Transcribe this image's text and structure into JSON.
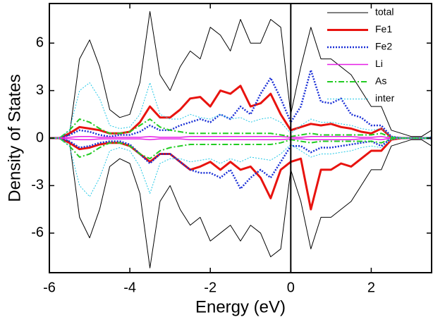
{
  "chart_data": {
    "type": "line",
    "xlabel": "Energy (eV)",
    "ylabel": "Density of States",
    "xlim": [
      -6,
      3.5
    ],
    "ylim": [
      -8.5,
      8.5
    ],
    "xticks": [
      -6,
      -4,
      -2,
      0,
      2
    ],
    "yticks": [
      -6,
      -3,
      0,
      3,
      6
    ],
    "vline": 0,
    "legend": "top-right",
    "x": [
      -6,
      -5.75,
      -5.5,
      -5.25,
      -5,
      -4.75,
      -4.5,
      -4.25,
      -4,
      -3.75,
      -3.5,
      -3.25,
      -3,
      -2.75,
      -2.5,
      -2.25,
      -2,
      -1.75,
      -1.5,
      -1.25,
      -1,
      -0.75,
      -0.5,
      -0.25,
      0,
      0.25,
      0.5,
      0.75,
      1,
      1.25,
      1.5,
      1.75,
      2,
      2.25,
      2.5,
      2.75,
      3,
      3.25,
      3.5
    ],
    "series": [
      {
        "name": "total",
        "color": "#000000",
        "width": 1,
        "dash": "none",
        "values": [
          0,
          0,
          0.2,
          5,
          6.2,
          4.5,
          1.8,
          1.3,
          1.5,
          3.5,
          8,
          4,
          3,
          4.5,
          5.5,
          5,
          7,
          6.5,
          5.5,
          7.5,
          6,
          6,
          7.5,
          7,
          1.5,
          4.5,
          7,
          5,
          5,
          4.5,
          4,
          3,
          2,
          2,
          0.5,
          0.3,
          0.1,
          0.1,
          0.5
        ],
        "values_down": [
          0,
          0,
          -0.2,
          -5,
          -6.3,
          -4.5,
          -1.8,
          -1.3,
          -1.6,
          -3.5,
          -8.2,
          -4,
          -3,
          -4.5,
          -5.5,
          -5,
          -6.5,
          -6,
          -5.5,
          -6.5,
          -5.5,
          -6,
          -7.5,
          -7,
          -2,
          -4,
          -7,
          -5,
          -5,
          -4.5,
          -4,
          -3,
          -2,
          -2,
          -0.5,
          -0.3,
          -0.1,
          -0.1,
          -0.5
        ]
      },
      {
        "name": "Fe1",
        "color": "#e8130f",
        "width": 3,
        "dash": "none",
        "values": [
          0,
          0,
          0.3,
          0.7,
          0.6,
          0.5,
          0.3,
          0.3,
          0.4,
          1,
          2,
          1.3,
          1.3,
          1.8,
          2.5,
          2.6,
          2,
          3,
          2.8,
          3.3,
          2,
          2.2,
          2.8,
          1.5,
          0.5,
          0.7,
          0.9,
          0.8,
          0.9,
          0.7,
          0.6,
          0.4,
          0.3,
          0.6,
          0.05,
          0,
          0,
          0,
          0
        ],
        "values_down": [
          0,
          0,
          -0.3,
          -0.7,
          -0.6,
          -0.4,
          -0.3,
          -0.3,
          -0.5,
          -1,
          -1.5,
          -1,
          -1,
          -1.5,
          -2,
          -1.8,
          -1.5,
          -2,
          -1.5,
          -2,
          -1.8,
          -2.5,
          -3.8,
          -2,
          -1.5,
          -1.3,
          -4.5,
          -2,
          -2,
          -1.6,
          -1.8,
          -1.3,
          -0.8,
          -0.8,
          -0.1,
          0,
          0,
          0,
          0
        ]
      },
      {
        "name": "Fe2",
        "color": "#1a2fd6",
        "width": 2.5,
        "dash": "2,2",
        "values": [
          0,
          0,
          0.2,
          0.5,
          0.4,
          0.2,
          0.1,
          0.2,
          0.2,
          0.4,
          0.8,
          0.5,
          0.5,
          0.8,
          1,
          1.2,
          1,
          1.5,
          1.2,
          2,
          1.5,
          2.8,
          3.8,
          2.5,
          1,
          2,
          4.3,
          2.3,
          2.2,
          2.5,
          1.5,
          1.3,
          0.8,
          0.8,
          0.1,
          0,
          0,
          0,
          0
        ],
        "values_down": [
          0,
          0,
          -0.2,
          -0.6,
          -0.5,
          -0.3,
          -0.2,
          -0.2,
          -0.4,
          -1,
          -1.6,
          -1,
          -1,
          -1.5,
          -2,
          -2.2,
          -2.2,
          -2.5,
          -2,
          -3.2,
          -2.5,
          -2,
          -2.5,
          -1.5,
          -0.5,
          -0.5,
          -0.9,
          -0.6,
          -0.6,
          -0.5,
          -0.4,
          -0.3,
          -0.2,
          -0.5,
          0,
          0,
          0,
          0,
          0
        ]
      },
      {
        "name": "Li",
        "color": "#e61ee6",
        "width": 1.5,
        "dash": "none",
        "values": [
          0,
          0,
          0.05,
          0.1,
          0.1,
          0.05,
          0.05,
          0.05,
          0.05,
          0.05,
          0.1,
          0.05,
          0.05,
          0.05,
          0.1,
          0.1,
          0.1,
          0.1,
          0.1,
          0.1,
          0.1,
          0.1,
          0.1,
          0.1,
          0.05,
          0.05,
          0.1,
          0.1,
          0.1,
          0.1,
          0.1,
          0.05,
          0.05,
          0.1,
          0,
          0,
          0,
          0,
          0
        ],
        "values_down": [
          0,
          0,
          -0.05,
          -0.1,
          -0.1,
          -0.05,
          -0.05,
          -0.05,
          -0.05,
          -0.05,
          -0.1,
          -0.05,
          -0.05,
          -0.05,
          -0.1,
          -0.1,
          -0.1,
          -0.1,
          -0.1,
          -0.1,
          -0.1,
          -0.1,
          -0.1,
          -0.1,
          -0.05,
          -0.05,
          -0.1,
          -0.1,
          -0.1,
          -0.1,
          -0.1,
          -0.05,
          -0.05,
          -0.1,
          0,
          0,
          0,
          0,
          0
        ]
      },
      {
        "name": "As",
        "color": "#22cc22",
        "width": 2,
        "dash": "8,3,2,3",
        "values": [
          0,
          0,
          0.5,
          1.2,
          1,
          0.6,
          0.3,
          0.3,
          0.4,
          0.8,
          1.2,
          0.7,
          0.5,
          0.4,
          0.3,
          0.3,
          0.3,
          0.3,
          0.3,
          0.3,
          0.3,
          0.3,
          0.3,
          0.2,
          0.1,
          0.2,
          0.3,
          0.2,
          0.2,
          0.2,
          0.2,
          0.2,
          0.2,
          0.3,
          0.05,
          0,
          0,
          0,
          0
        ],
        "values_down": [
          0,
          0,
          -0.5,
          -1.2,
          -1,
          -0.6,
          -0.3,
          -0.3,
          -0.5,
          -1,
          -1.3,
          -0.8,
          -0.6,
          -0.5,
          -0.4,
          -0.4,
          -0.4,
          -0.4,
          -0.4,
          -0.4,
          -0.4,
          -0.4,
          -0.4,
          -0.3,
          -0.1,
          -0.2,
          -0.3,
          -0.2,
          -0.2,
          -0.2,
          -0.2,
          -0.2,
          -0.2,
          -0.3,
          -0.05,
          0,
          0,
          0,
          0
        ]
      },
      {
        "name": "inter",
        "color": "#22c8e6",
        "width": 1,
        "dash": "2,2",
        "values": [
          0,
          0,
          0.5,
          3,
          3.5,
          2.5,
          0.8,
          0.6,
          0.7,
          1.5,
          3.5,
          1.5,
          1.2,
          1.2,
          1.5,
          1.3,
          1.2,
          1.5,
          1.2,
          1.3,
          1,
          1.2,
          1.3,
          1,
          0.3,
          0.8,
          1.2,
          1,
          1,
          0.9,
          0.8,
          0.6,
          0.5,
          0.6,
          0.1,
          0,
          0,
          0,
          0.1
        ],
        "values_down": [
          0,
          0,
          -0.5,
          -3,
          -3.7,
          -2.5,
          -0.8,
          -0.6,
          -0.8,
          -1.8,
          -3.5,
          -1.6,
          -1.3,
          -1.3,
          -1.5,
          -1.4,
          -1.3,
          -1.6,
          -1.3,
          -1.5,
          -1.2,
          -1.3,
          -1.4,
          -1,
          -0.4,
          -0.8,
          -1.2,
          -1,
          -1,
          -0.9,
          -0.8,
          -0.6,
          -0.5,
          -0.6,
          -0.1,
          0,
          0,
          0,
          -0.1
        ]
      }
    ]
  }
}
